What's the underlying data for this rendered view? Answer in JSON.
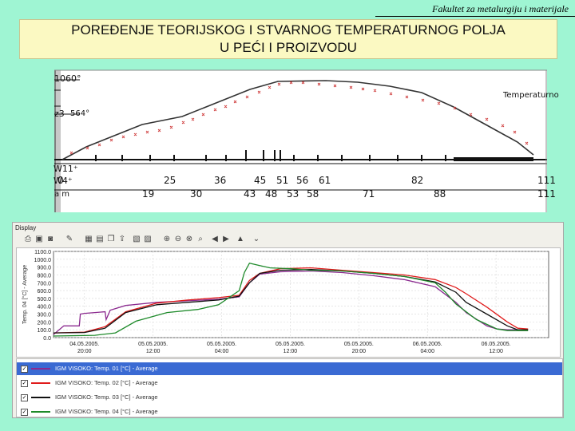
{
  "header": {
    "faculty": "Fakultet za metalurgiju i materijale",
    "title_line1": "POREĐENJE TEORIJSKOG I STVARNOG TEMPERATURNOG POLJA",
    "title_line2": "U PEĆI I PROIZVODU"
  },
  "scan_chart": {
    "y_top": "1060°",
    "y_mid_zone": "z3",
    "y_mid_value": "564°",
    "label_right": "Temperaturno",
    "row1_label": "W11⁺",
    "row2_label": "W4⁺",
    "row3_label": "a m",
    "row1_values": [
      "0",
      "25",
      "36",
      "45",
      "51",
      "56",
      "61",
      "82",
      "111"
    ],
    "row2_values": [
      "19",
      "30",
      "43",
      "48",
      "53",
      "58",
      "71",
      "88",
      "111"
    ]
  },
  "app": {
    "window_title": "Display",
    "toolbar_icons": [
      "print-icon",
      "save-icon",
      "camera-icon",
      "tools-icon",
      "grid-icon",
      "table-icon",
      "copy-icon",
      "export-icon",
      "report-icon",
      "paste-icon",
      "zoom-in-icon",
      "zoom-out-icon",
      "zoom-reset-icon",
      "search-icon",
      "arrow-left-icon",
      "arrow-right-icon",
      "arrow-up-icon",
      "dropdown-icon"
    ],
    "legend": [
      {
        "label": "IGM VISOKO: Temp.  01 [°C] - Average",
        "color": "#8b2a8f",
        "checked": "✓",
        "selected": true
      },
      {
        "label": "IGM VISOKO: Temp.  02 [°C] - Average",
        "color": "#e01b1b",
        "checked": "✓",
        "selected": false
      },
      {
        "label": "IGM VISOKO: Temp.  03 [°C] - Average",
        "color": "#111111",
        "checked": "✓",
        "selected": false
      },
      {
        "label": "IGM VISOKO: Temp.  04 [°C] - Average",
        "color": "#1e8a2a",
        "checked": "✓",
        "selected": false
      }
    ]
  },
  "chart_data": {
    "type": "line",
    "ylabel": "Temp. 04 [°C] - Average",
    "ylim": [
      0,
      1100
    ],
    "y_ticks": [
      "0.0",
      "100.0",
      "200.0",
      "300.0",
      "400.0",
      "500.0",
      "600.0",
      "700.0",
      "800.0",
      "900.0",
      "1000.0",
      "1100.0"
    ],
    "x_ticks": [
      [
        "04.05.2005.",
        "20:00"
      ],
      [
        "05.05.2005.",
        "12:00"
      ],
      [
        "05.05.2005.",
        "04:00"
      ],
      [
        "05.05.2005.",
        "12:00"
      ],
      [
        "05.05.2005.",
        "20:00"
      ],
      [
        "06.05.2005.",
        "04:00"
      ],
      [
        "06.05.2005.",
        "12:00"
      ]
    ],
    "xlim": [
      0,
      96
    ],
    "grid": true,
    "series": [
      {
        "name": "IGM VISOKO: Temp.  01 [°C] - Average",
        "color": "#8b2a8f",
        "x": [
          0,
          2,
          5,
          5.2,
          6,
          8,
          10,
          10.2,
          11,
          14,
          20,
          26,
          32,
          36,
          38,
          40,
          44,
          50,
          56,
          62,
          68,
          74,
          78,
          80,
          84,
          86,
          88,
          92
        ],
        "y": [
          40,
          150,
          150,
          300,
          310,
          320,
          330,
          230,
          350,
          410,
          450,
          470,
          490,
          520,
          700,
          810,
          840,
          850,
          830,
          790,
          740,
          650,
          450,
          320,
          150,
          110,
          100,
          100
        ]
      },
      {
        "name": "IGM VISOKO: Temp.  02 [°C] - Average",
        "color": "#e01b1b",
        "x": [
          0,
          6,
          10,
          14,
          20,
          26,
          32,
          36,
          38,
          40,
          44,
          50,
          56,
          62,
          68,
          74,
          78,
          80,
          84,
          88,
          90,
          92
        ],
        "y": [
          60,
          70,
          140,
          330,
          440,
          480,
          510,
          540,
          730,
          820,
          880,
          890,
          860,
          830,
          800,
          740,
          640,
          560,
          390,
          200,
          120,
          110
        ]
      },
      {
        "name": "IGM VISOKO: Temp.  03 [°C] - Average",
        "color": "#111111",
        "x": [
          0,
          6,
          10,
          14,
          20,
          26,
          32,
          36,
          38,
          40,
          44,
          50,
          56,
          62,
          68,
          74,
          78,
          80,
          84,
          88,
          90,
          92
        ],
        "y": [
          60,
          65,
          120,
          320,
          420,
          450,
          480,
          530,
          700,
          820,
          860,
          870,
          850,
          820,
          780,
          710,
          580,
          450,
          300,
          150,
          100,
          100
        ]
      },
      {
        "name": "IGM VISOKO: Temp.  04 [°C] - Average",
        "color": "#1e8a2a",
        "x": [
          0,
          8,
          12,
          16,
          22,
          28,
          32,
          36,
          37,
          38,
          40,
          42,
          46,
          50,
          56,
          62,
          68,
          74,
          76,
          78,
          82,
          86,
          88,
          92
        ],
        "y": [
          20,
          30,
          60,
          210,
          320,
          360,
          420,
          600,
          830,
          950,
          920,
          890,
          880,
          860,
          850,
          820,
          780,
          700,
          580,
          430,
          230,
          110,
          90,
          90
        ]
      }
    ]
  }
}
